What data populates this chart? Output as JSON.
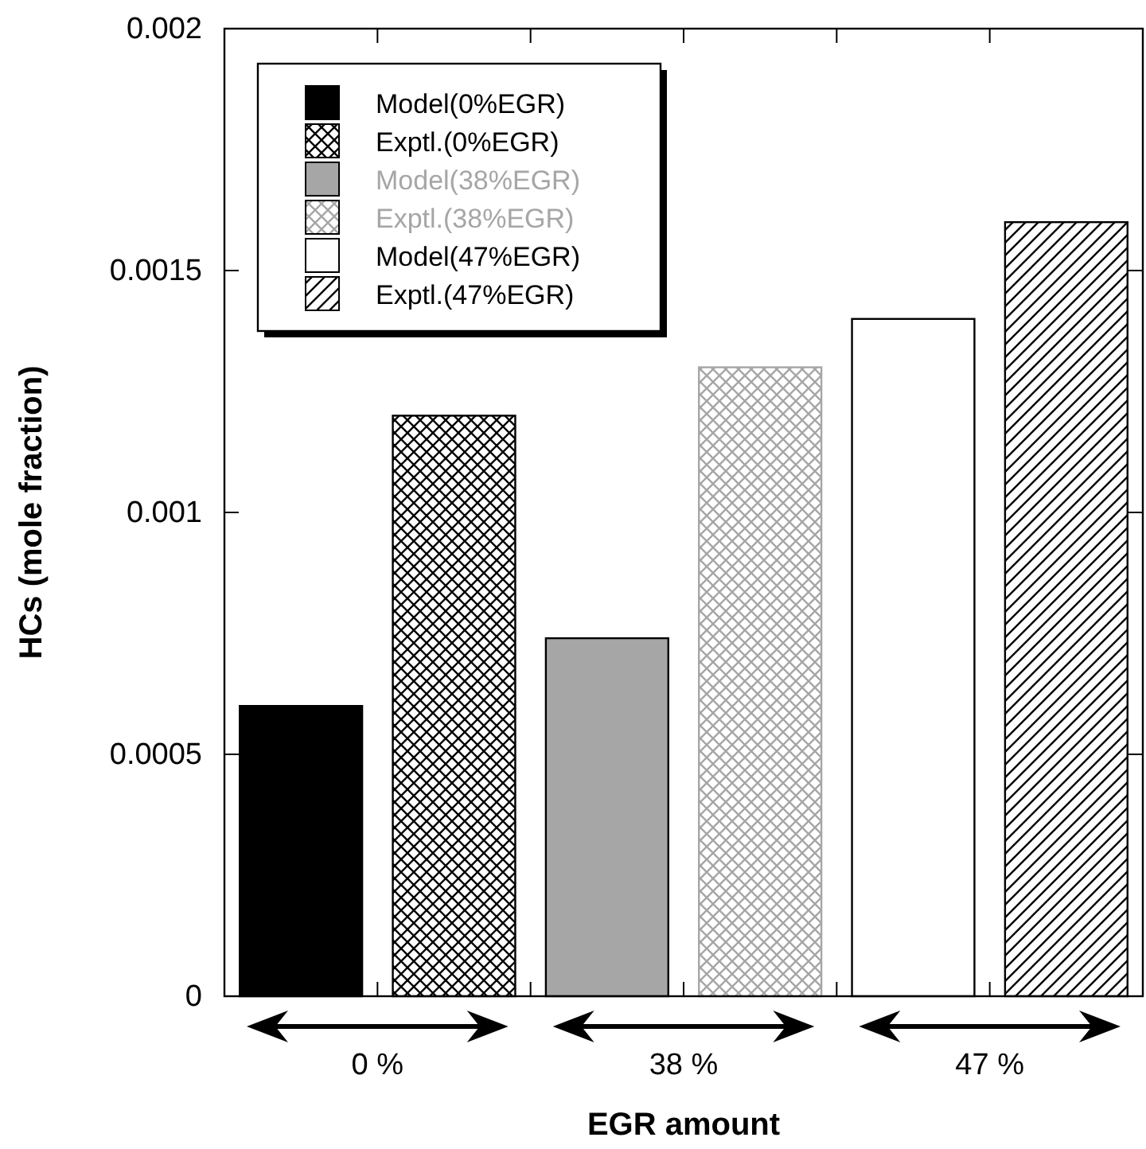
{
  "chart_data": {
    "type": "bar",
    "xlabel": "EGR amount",
    "ylabel": "HCs (mole fraction)",
    "categories": [
      "0 %",
      "38 %",
      "47 %"
    ],
    "ylim": [
      0,
      0.002
    ],
    "yticks": [
      0,
      0.0005,
      0.001,
      0.0015,
      0.002
    ],
    "grid": false,
    "legend": "top left",
    "series": [
      {
        "name": "Model(0%EGR)",
        "color": "#000000",
        "values": [
          0.0006,
          null,
          null
        ]
      },
      {
        "name": "Exptl.(0%EGR)",
        "color": "#000000",
        "values": [
          0.0012,
          null,
          null
        ]
      },
      {
        "name": "Model(38%EGR)",
        "color": "#a6a6a6",
        "values": [
          null,
          0.00074,
          null
        ]
      },
      {
        "name": "Exptl.(38%EGR)",
        "color": "#a6a6a6",
        "values": [
          null,
          0.0013,
          null
        ]
      },
      {
        "name": "Model(47%EGR)",
        "color": "#ffffff",
        "values": [
          null,
          null,
          0.0014
        ]
      },
      {
        "name": "Exptl.(47%EGR)",
        "color": "#000000",
        "values": [
          null,
          null,
          0.0016
        ]
      }
    ]
  }
}
